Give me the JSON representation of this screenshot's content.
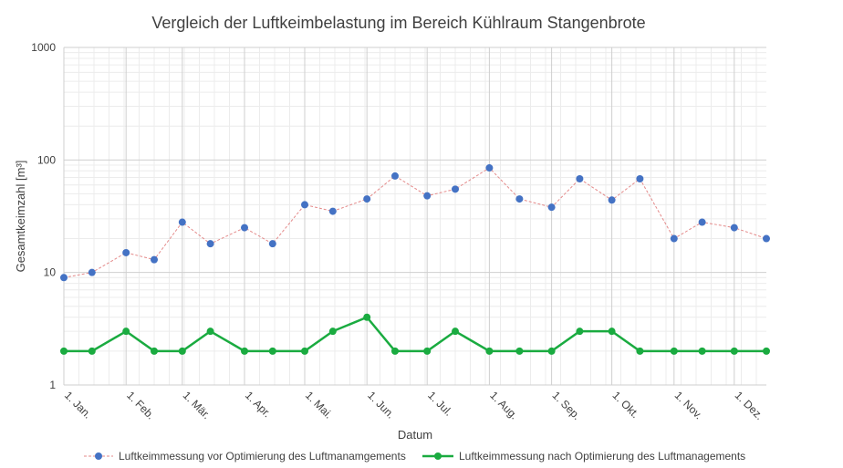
{
  "chart_data": {
    "type": "line",
    "title": "Vergleich der Luftkeimbelastung im Bereich Kühlraum Stangenbrote",
    "xlabel": "Datum",
    "ylabel": "Gesamtkeimzahl [m³]",
    "yscale": "log",
    "ylim": [
      1,
      1000
    ],
    "y_ticks": [
      1,
      10,
      100,
      1000
    ],
    "y_tick_labels": [
      "1",
      "10",
      "100",
      "1000"
    ],
    "x_range_days": [
      0,
      350
    ],
    "x_ticks": [
      {
        "day": 0,
        "label": "1. Jan."
      },
      {
        "day": 31,
        "label": "1. Feb."
      },
      {
        "day": 59,
        "label": "1. Mär."
      },
      {
        "day": 90,
        "label": "1. Apr."
      },
      {
        "day": 120,
        "label": "1. Mai."
      },
      {
        "day": 151,
        "label": "1. Jun."
      },
      {
        "day": 181,
        "label": "1. Jul."
      },
      {
        "day": 212,
        "label": "1. Aug."
      },
      {
        "day": 243,
        "label": "1. Sep."
      },
      {
        "day": 273,
        "label": "1. Okt."
      },
      {
        "day": 304,
        "label": "1. Nov."
      },
      {
        "day": 334,
        "label": "1. Dez."
      }
    ],
    "series": [
      {
        "name": "Luftkeimmessung vor Optimierung des Luftmanamgements",
        "color": "#4472c4",
        "line_color": "#e48a8a",
        "line_style": "dashed",
        "x": [
          0,
          14,
          31,
          45,
          59,
          73,
          90,
          104,
          120,
          134,
          151,
          165,
          181,
          195,
          212,
          227,
          243,
          257,
          273,
          287,
          304,
          318,
          334,
          350
        ],
        "values": [
          9,
          10,
          15,
          13,
          28,
          18,
          25,
          18,
          40,
          35,
          45,
          72,
          48,
          55,
          85,
          45,
          38,
          68,
          44,
          68,
          20,
          28,
          25,
          20
        ]
      },
      {
        "name": "Luftkeimmessung nach Optimierung des Luftmanagements",
        "color": "#1aab40",
        "line_color": "#1aab40",
        "line_style": "solid",
        "x": [
          0,
          14,
          31,
          45,
          59,
          73,
          90,
          104,
          120,
          134,
          151,
          165,
          181,
          195,
          212,
          227,
          243,
          257,
          273,
          287,
          304,
          318,
          334,
          350
        ],
        "values": [
          2,
          2,
          3,
          2,
          2,
          3,
          2,
          2,
          2,
          3,
          4,
          2,
          2,
          3,
          2,
          2,
          2,
          3,
          3,
          2,
          2,
          2,
          2,
          2
        ]
      }
    ]
  }
}
